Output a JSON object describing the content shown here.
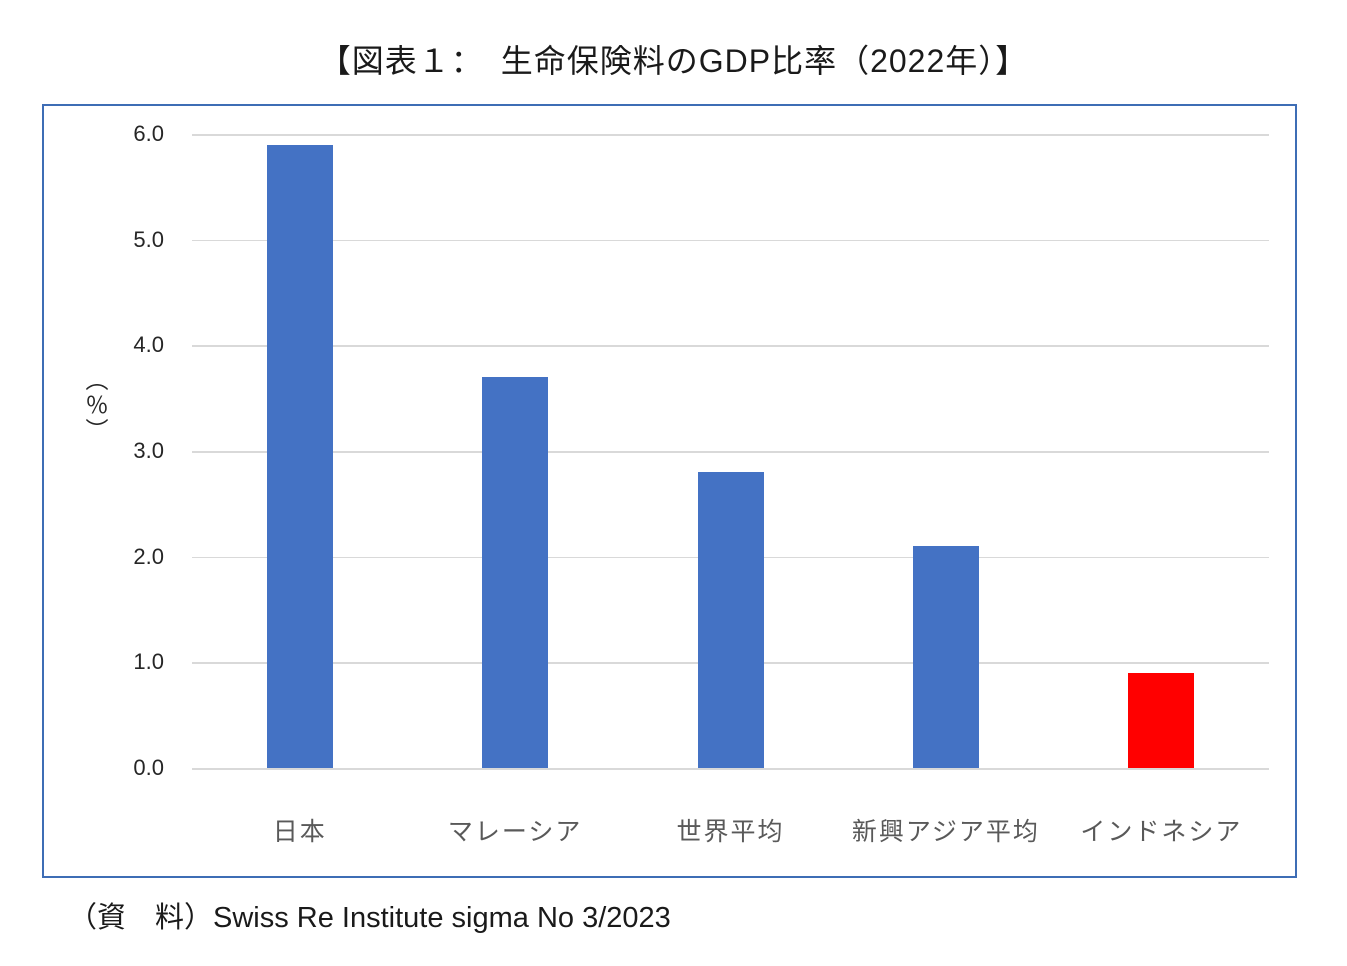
{
  "title": "【図表１：　生命保険料のGDP比率（2022年）】",
  "source": "（資　料）Swiss Re Institute sigma No 3/2023",
  "chart_data": {
    "type": "bar",
    "title": "生命保険料のGDP比率（2022年）",
    "categories": [
      "日本",
      "マレーシア",
      "世界平均",
      "新興アジア平均",
      "インドネシア"
    ],
    "values": [
      5.9,
      3.7,
      2.8,
      2.1,
      0.9
    ],
    "bar_colors": [
      "#4472c4",
      "#4472c4",
      "#4472c4",
      "#4472c4",
      "#ff0000"
    ],
    "xlabel": "",
    "ylabel": "（％）",
    "ylim": [
      0,
      6
    ],
    "ytick_step": 1.0,
    "ytick_labels": [
      "0.0",
      "1.0",
      "2.0",
      "3.0",
      "4.0",
      "5.0",
      "6.0"
    ],
    "grid": true,
    "gridline_color": "#d9d9d9",
    "frame_color": "#3e6db5",
    "legend": "none"
  }
}
